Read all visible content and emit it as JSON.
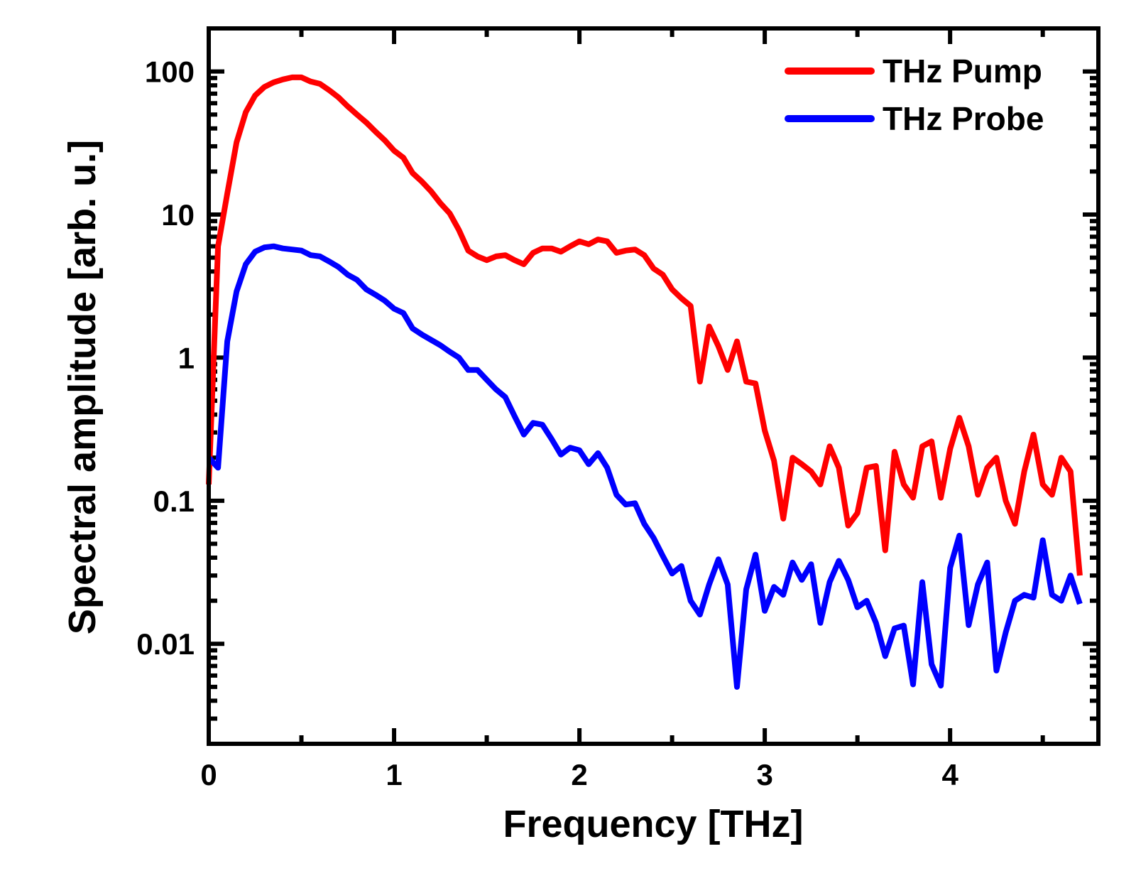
{
  "chart_data": {
    "type": "line",
    "title": "",
    "xlabel": "Frequency [THz]",
    "ylabel": "Spectral amplitude [arb. u.]",
    "xscale": "linear",
    "yscale": "log",
    "xlim": [
      0,
      4.8
    ],
    "ylim": [
      0.002,
      200
    ],
    "xticks": [
      0,
      1,
      2,
      3,
      4
    ],
    "xtick_labels": [
      "0",
      "1",
      "2",
      "3",
      "4"
    ],
    "xminor_ticks": [
      0.5,
      1.5,
      2.5,
      3.5,
      4.5
    ],
    "yticks": [
      100,
      10,
      1,
      0.1,
      0.01
    ],
    "ytick_labels": [
      "100",
      "10",
      "1",
      "0.1",
      "0.01"
    ],
    "grid": false,
    "legend_position": "top-right",
    "x": [
      0,
      0.05,
      0.1,
      0.15,
      0.2,
      0.25,
      0.3,
      0.35,
      0.4,
      0.45,
      0.5,
      0.55,
      0.6,
      0.65,
      0.7,
      0.75,
      0.8,
      0.85,
      0.9,
      0.95,
      1.0,
      1.05,
      1.1,
      1.15,
      1.2,
      1.25,
      1.3,
      1.35,
      1.4,
      1.45,
      1.5,
      1.55,
      1.6,
      1.65,
      1.7,
      1.75,
      1.8,
      1.85,
      1.9,
      1.95,
      2.0,
      2.05,
      2.1,
      2.15,
      2.2,
      2.25,
      2.3,
      2.35,
      2.4,
      2.45,
      2.5,
      2.55,
      2.6,
      2.65,
      2.7,
      2.75,
      2.8,
      2.85,
      2.9,
      2.95,
      3.0,
      3.05,
      3.1,
      3.15,
      3.2,
      3.25,
      3.3,
      3.35,
      3.4,
      3.45,
      3.5,
      3.55,
      3.6,
      3.65,
      3.7,
      3.75,
      3.8,
      3.85,
      3.9,
      3.95,
      4.0,
      4.05,
      4.1,
      4.15,
      4.2,
      4.25,
      4.3,
      4.35,
      4.4,
      4.45,
      4.5,
      4.55,
      4.6,
      4.65,
      4.7
    ],
    "series": [
      {
        "name": "THz Pump",
        "color": "#ff0000",
        "values": [
          0.13,
          6,
          14,
          32,
          52,
          68,
          78,
          84,
          88,
          91,
          91,
          85,
          82,
          74,
          66,
          57,
          50,
          44,
          38,
          33,
          28,
          25,
          19.5,
          17,
          14.5,
          12,
          10.2,
          7.8,
          5.6,
          5.1,
          4.8,
          5.1,
          5.2,
          4.8,
          4.5,
          5.4,
          5.8,
          5.8,
          5.5,
          6.0,
          6.5,
          6.2,
          6.7,
          6.5,
          5.4,
          5.6,
          5.7,
          5.2,
          4.2,
          3.8,
          3.0,
          2.6,
          2.3,
          0.68,
          1.65,
          1.2,
          0.82,
          1.3,
          0.68,
          0.66,
          0.31,
          0.19,
          0.075,
          0.2,
          0.18,
          0.16,
          0.13,
          0.24,
          0.17,
          0.067,
          0.082,
          0.17,
          0.175,
          0.045,
          0.22,
          0.13,
          0.105,
          0.24,
          0.26,
          0.105,
          0.23,
          0.38,
          0.24,
          0.11,
          0.17,
          0.2,
          0.1,
          0.069,
          0.16,
          0.29,
          0.13,
          0.11,
          0.2,
          0.16,
          0.03
        ]
      },
      {
        "name": "THz Probe",
        "color": "#0000ff",
        "values": [
          0.2,
          0.17,
          1.3,
          2.9,
          4.5,
          5.5,
          5.9,
          6.0,
          5.8,
          5.7,
          5.6,
          5.2,
          5.1,
          4.7,
          4.3,
          3.8,
          3.5,
          3.0,
          2.75,
          2.5,
          2.2,
          2.05,
          1.6,
          1.45,
          1.33,
          1.22,
          1.1,
          1.0,
          0.82,
          0.82,
          0.7,
          0.6,
          0.53,
          0.39,
          0.29,
          0.35,
          0.34,
          0.27,
          0.21,
          0.235,
          0.225,
          0.18,
          0.215,
          0.17,
          0.11,
          0.094,
          0.096,
          0.069,
          0.055,
          0.041,
          0.031,
          0.035,
          0.02,
          0.016,
          0.026,
          0.039,
          0.026,
          0.005,
          0.024,
          0.042,
          0.017,
          0.025,
          0.022,
          0.037,
          0.028,
          0.036,
          0.014,
          0.027,
          0.038,
          0.028,
          0.018,
          0.02,
          0.014,
          0.0082,
          0.0128,
          0.0134,
          0.0052,
          0.027,
          0.0072,
          0.0051,
          0.034,
          0.057,
          0.0135,
          0.026,
          0.037,
          0.0065,
          0.012,
          0.02,
          0.022,
          0.021,
          0.053,
          0.022,
          0.02,
          0.03,
          0.019
        ]
      }
    ]
  }
}
